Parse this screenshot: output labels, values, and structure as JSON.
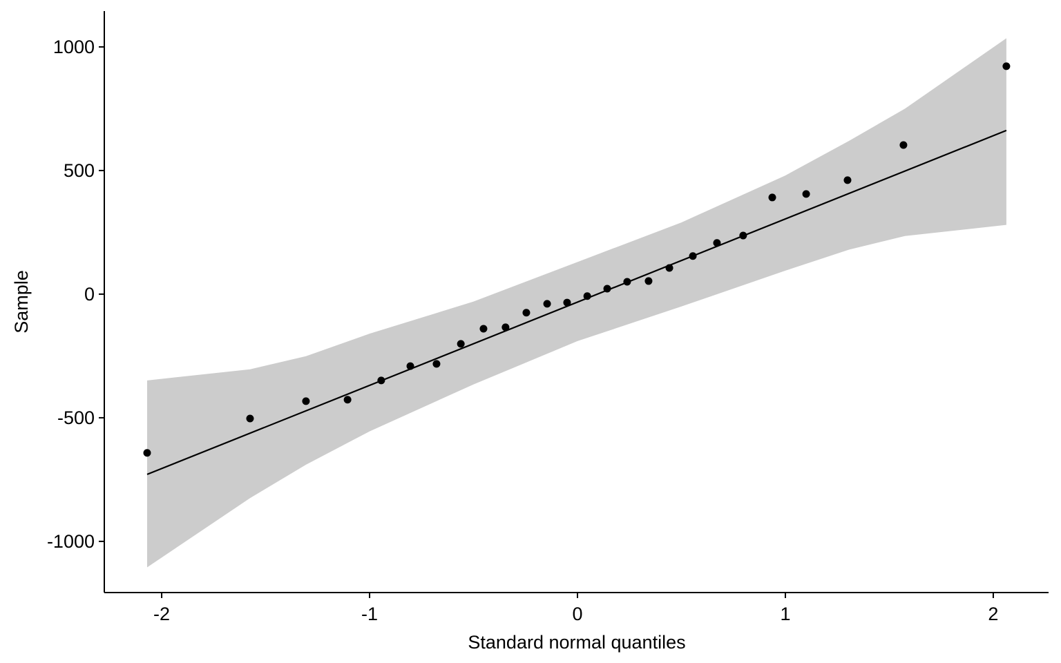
{
  "chart_data": {
    "type": "scatter",
    "x_label": "Standard normal quantiles",
    "y_label": "Sample",
    "x": [
      -2.07,
      -1.575,
      -1.306,
      -1.106,
      -0.944,
      -0.804,
      -0.678,
      -0.561,
      -0.452,
      -0.346,
      -0.246,
      -0.146,
      -0.05,
      0.047,
      0.143,
      0.239,
      0.342,
      0.442,
      0.555,
      0.671,
      0.797,
      0.937,
      1.1,
      1.299,
      1.568,
      2.063
    ],
    "values": [
      -642,
      -503,
      -433,
      -427,
      -349,
      -291,
      -282,
      -201,
      -140,
      -134,
      -75,
      -39,
      -34,
      -8,
      22,
      50,
      53,
      106,
      154,
      207,
      237,
      391,
      405,
      461,
      603,
      922
    ],
    "color": "#000000",
    "line": {
      "x": [
        -2.07,
        2.063
      ],
      "values": [
        -729,
        662
      ],
      "color": "#000000"
    },
    "band": {
      "x": [
        -2.07,
        -1.575,
        -1.306,
        -1.0,
        -0.5,
        0,
        0.5,
        1.0,
        1.306,
        1.575,
        2.063
      ],
      "upper": [
        -349,
        -304,
        -251,
        -160,
        -30,
        130,
        290,
        480,
        620,
        750,
        1035
      ],
      "lower": [
        -1105,
        -825,
        -690,
        -555,
        -365,
        -190,
        -50,
        95,
        180,
        235,
        280
      ],
      "color": "#cccccc"
    },
    "xlim": [
      -2.276,
      2.266
    ],
    "ylim": [
      -1207,
      1145
    ],
    "xticks": [
      -2,
      -1,
      0,
      1,
      2
    ],
    "yticks": [
      -1000,
      -500,
      0,
      500,
      1000
    ]
  }
}
